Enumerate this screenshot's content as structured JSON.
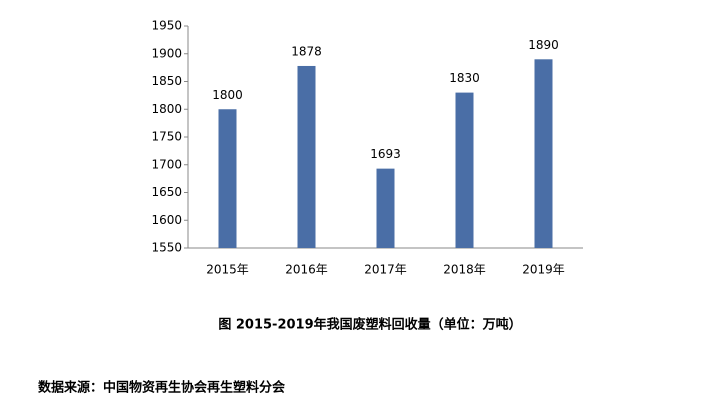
{
  "chart_data": {
    "type": "bar",
    "categories": [
      "2015年",
      "2016年",
      "2017年",
      "2018年",
      "2019年"
    ],
    "values": [
      1800,
      1878,
      1693,
      1830,
      1890
    ],
    "color": "#4a6ea6",
    "ylim": [
      1550,
      1950
    ],
    "yticks": [
      1550,
      1600,
      1650,
      1700,
      1750,
      1800,
      1850,
      1900,
      1950
    ],
    "grid": false,
    "data_labels": true,
    "caption": "图  2015-2019年我国废塑料回收量（单位：万吨）",
    "source": "数据来源：中国物资再生协会再生塑料分会"
  }
}
